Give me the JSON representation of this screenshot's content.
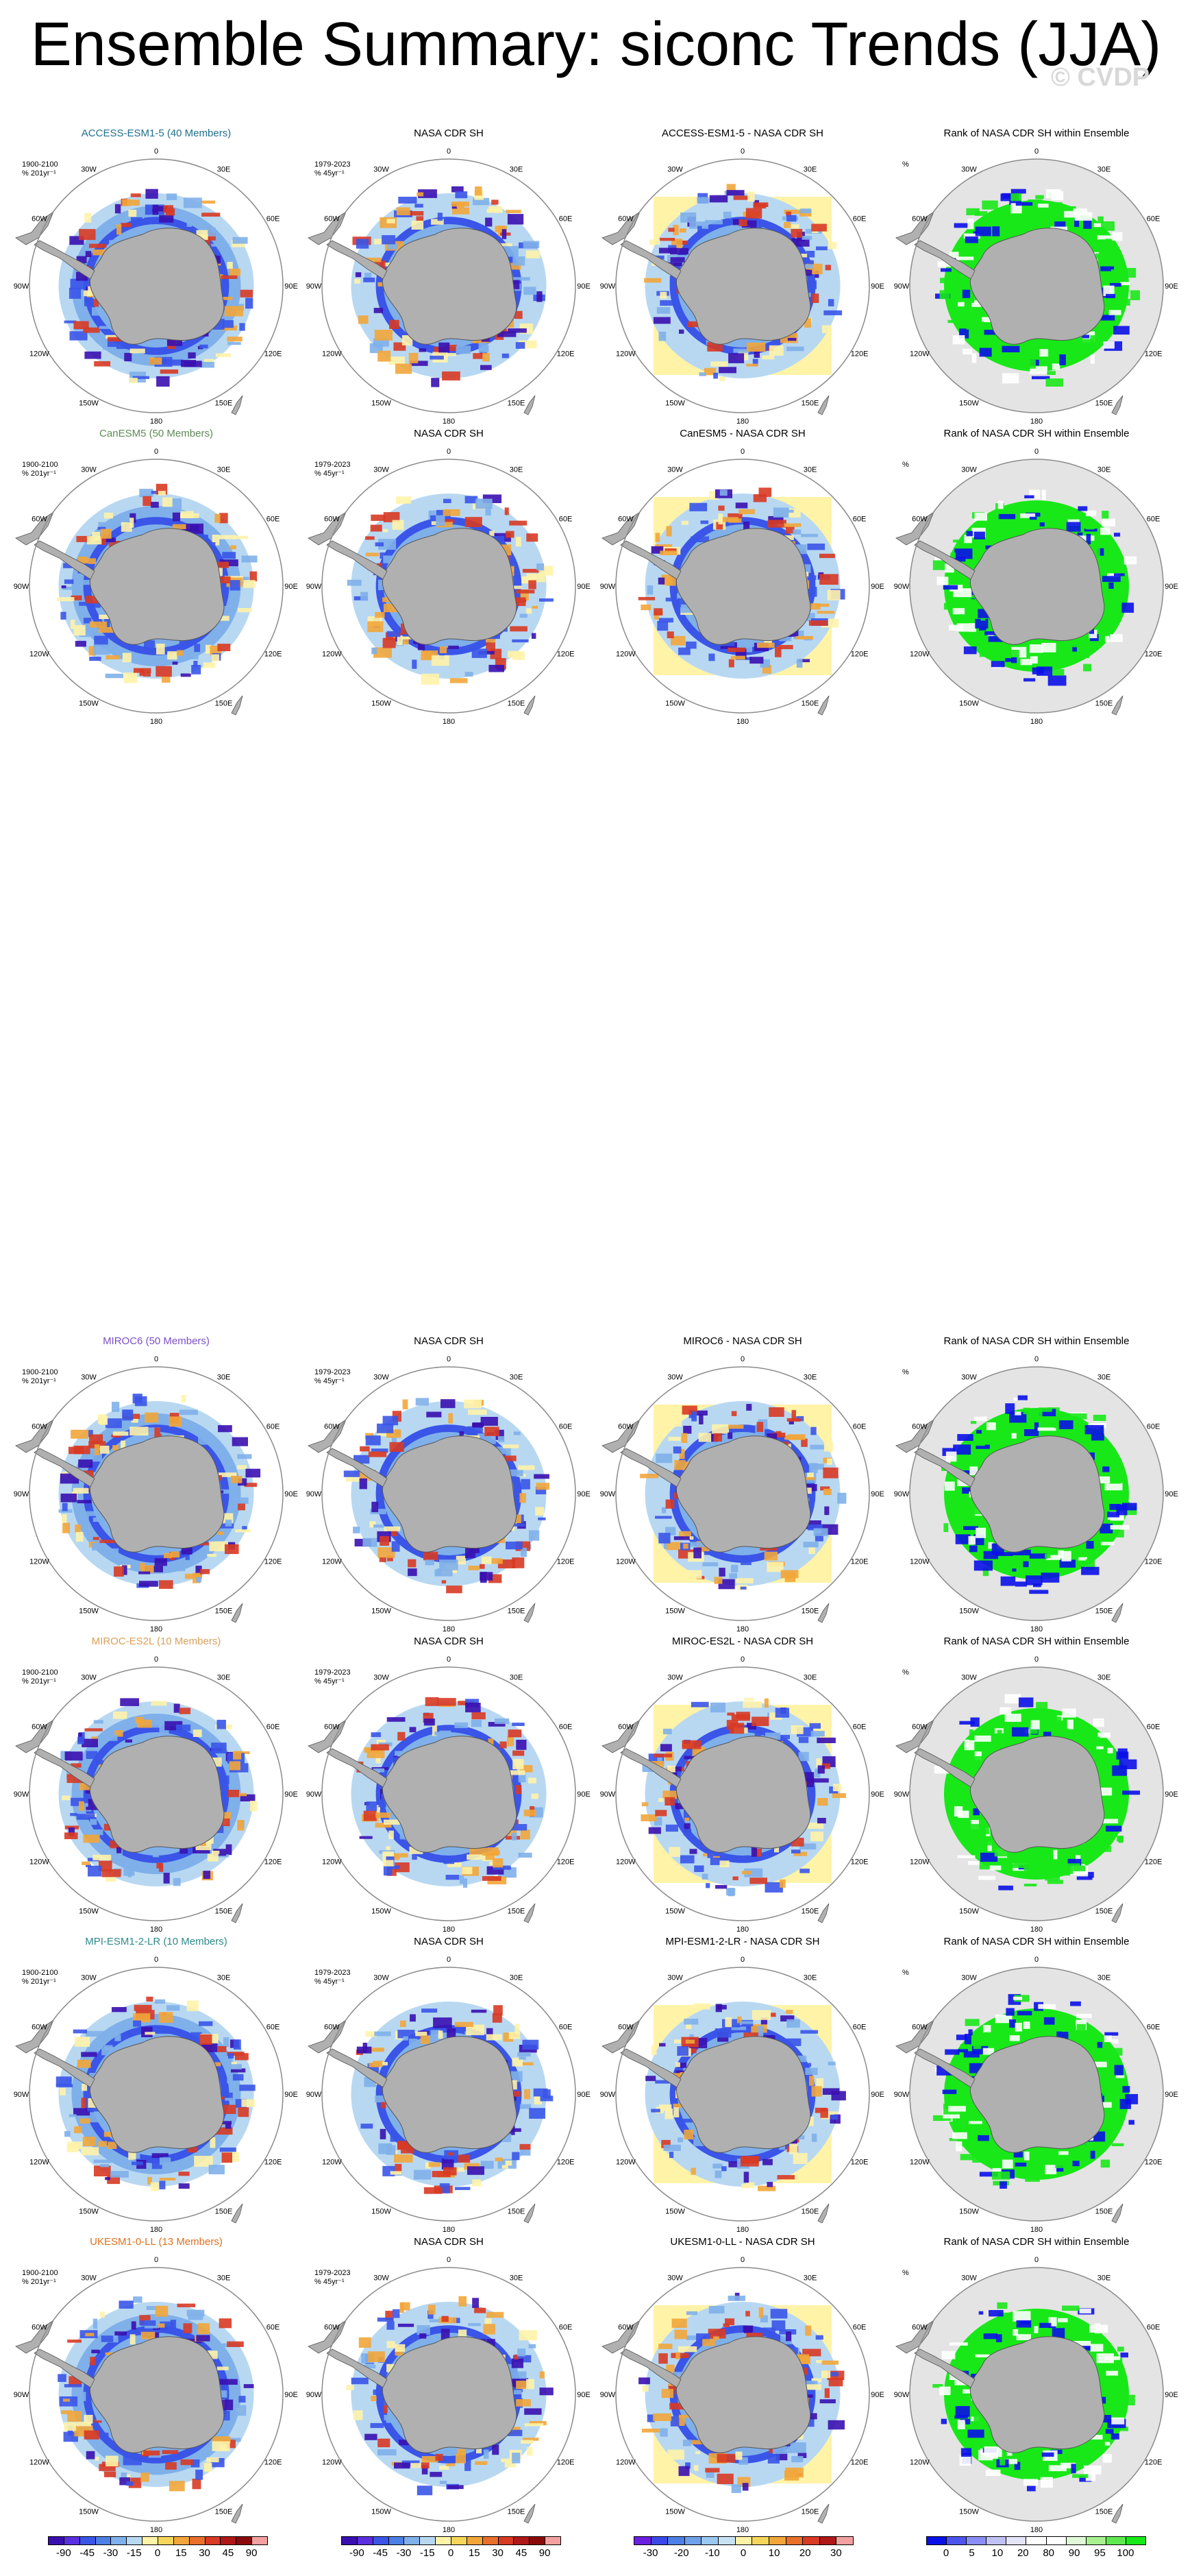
{
  "title": "Ensemble Summary: siconc Trends (JJA)",
  "watermark": "© CVDP",
  "rows": [
    {
      "model": "ACCESS-ESM1-5 (40 Members)",
      "model_color": "#1f6f8b",
      "model_sub": [
        "1900-2100",
        "% 201yr⁻¹"
      ],
      "obs_title": "NASA CDR SH",
      "obs_sub": [
        "1979-2023",
        "% 45yr⁻¹"
      ],
      "diff_title": "ACCESS-ESM1-5 - NASA CDR SH",
      "rank_title": "Rank of NASA CDR SH within Ensemble",
      "rank_sub": "%"
    },
    {
      "model": "CanESM5 (50 Members)",
      "model_color": "#5d8a55",
      "model_sub": [
        "1900-2100",
        "% 201yr⁻¹"
      ],
      "obs_title": "NASA CDR SH",
      "obs_sub": [
        "1979-2023",
        "% 45yr⁻¹"
      ],
      "diff_title": "CanESM5 - NASA CDR SH",
      "rank_title": "Rank of NASA CDR SH within Ensemble",
      "rank_sub": "%"
    },
    {
      "model": "MIROC6 (50 Members)",
      "model_color": "#7b4fc4",
      "model_sub": [
        "1900-2100",
        "% 201yr⁻¹"
      ],
      "obs_title": "NASA CDR SH",
      "obs_sub": [
        "1979-2023",
        "% 45yr⁻¹"
      ],
      "diff_title": "MIROC6 - NASA CDR SH",
      "rank_title": "Rank of NASA CDR SH within Ensemble",
      "rank_sub": "%"
    },
    {
      "model": "MIROC-ES2L (10 Members)",
      "model_color": "#d9a05b",
      "model_sub": [
        "1900-2100",
        "% 201yr⁻¹"
      ],
      "obs_title": "NASA CDR SH",
      "obs_sub": [
        "1979-2023",
        "% 45yr⁻¹"
      ],
      "diff_title": "MIROC-ES2L - NASA CDR SH",
      "rank_title": "Rank of NASA CDR SH within Ensemble",
      "rank_sub": "%"
    },
    {
      "model": "MPI-ESM1-2-LR (10 Members)",
      "model_color": "#2e8a8a",
      "model_sub": [
        "1900-2100",
        "% 201yr⁻¹"
      ],
      "obs_title": "NASA CDR SH",
      "obs_sub": [
        "1979-2023",
        "% 45yr⁻¹"
      ],
      "diff_title": "MPI-ESM1-2-LR - NASA CDR SH",
      "rank_title": "Rank of NASA CDR SH within Ensemble",
      "rank_sub": "%"
    },
    {
      "model": "UKESM1-0-LL (13 Members)",
      "model_color": "#e07020",
      "model_sub": [
        "1900-2100",
        "% 201yr⁻¹"
      ],
      "obs_title": "NASA CDR SH",
      "obs_sub": [
        "1979-2023",
        "% 45yr⁻¹"
      ],
      "diff_title": "UKESM1-0-LL - NASA CDR SH",
      "rank_title": "Rank of NASA CDR SH within Ensemble",
      "rank_sub": "%"
    }
  ],
  "longitude_labels": {
    "top": "0",
    "bottom": "180",
    "left": "90W",
    "right": "90E",
    "upper_left_1": "30W",
    "upper_left_2": "60W",
    "upper_right_1": "30E",
    "upper_right_2": "60E",
    "lower_left_1": "120W",
    "lower_left_2": "150W",
    "lower_right_1": "120E",
    "lower_right_2": "150E"
  },
  "colorbars": [
    {
      "name": "trend-colorbar-model",
      "colors": [
        "#3a0fb0",
        "#5a2fe0",
        "#3a55e8",
        "#4d7fe6",
        "#7fb0ea",
        "#b8d8f2",
        "#fff3a8",
        "#f5d65a",
        "#f2a63a",
        "#e8702a",
        "#d83a24",
        "#b01818",
        "#8a0a0a",
        "#f2a0a0"
      ],
      "ticks": [
        "-90",
        "-45",
        "-30",
        "-15",
        "0",
        "15",
        "30",
        "45",
        "90"
      ]
    },
    {
      "name": "trend-colorbar-obs",
      "colors": [
        "#3a0fb0",
        "#5a2fe0",
        "#3a55e8",
        "#4d7fe6",
        "#7fb0ea",
        "#b8d8f2",
        "#fff3a8",
        "#f5d65a",
        "#f2a63a",
        "#e8702a",
        "#d83a24",
        "#b01818",
        "#8a0a0a",
        "#f2a0a0"
      ],
      "ticks": [
        "-90",
        "-45",
        "-30",
        "-15",
        "0",
        "15",
        "30",
        "45",
        "90"
      ]
    },
    {
      "name": "difference-colorbar",
      "colors": [
        "#6a1fe0",
        "#3a48e8",
        "#4d7fe6",
        "#6fa0ea",
        "#9ac8f0",
        "#c8e2f5",
        "#fff3a8",
        "#f5d65a",
        "#f2a63a",
        "#e8702a",
        "#d83a24",
        "#b01818",
        "#f2a0a0"
      ],
      "ticks": [
        "-30",
        "-20",
        "-10",
        "0",
        "10",
        "20",
        "30"
      ]
    },
    {
      "name": "rank-colorbar",
      "colors": [
        "#0a10e8",
        "#4d55ee",
        "#8a8ef2",
        "#c0c2f6",
        "#e4e4f8",
        "#ffffff",
        "#ffffff",
        "#e0f8d8",
        "#a8f090",
        "#60e850",
        "#18e818"
      ],
      "ticks": [
        "0",
        "5",
        "10",
        "20",
        "80",
        "90",
        "95",
        "100"
      ]
    }
  ],
  "legend": {
    "trend_colors": [
      "#3a0fb0",
      "#3a55e8",
      "#7fb0ea",
      "#b8d8f2",
      "#fff3a8",
      "#f2a63a",
      "#d83a24"
    ],
    "rank_colors": [
      "#0a10e8",
      "#18e818",
      "#ffffff"
    ],
    "land_color": "#b0b0b0",
    "rank_background": "#e4e4e4"
  }
}
